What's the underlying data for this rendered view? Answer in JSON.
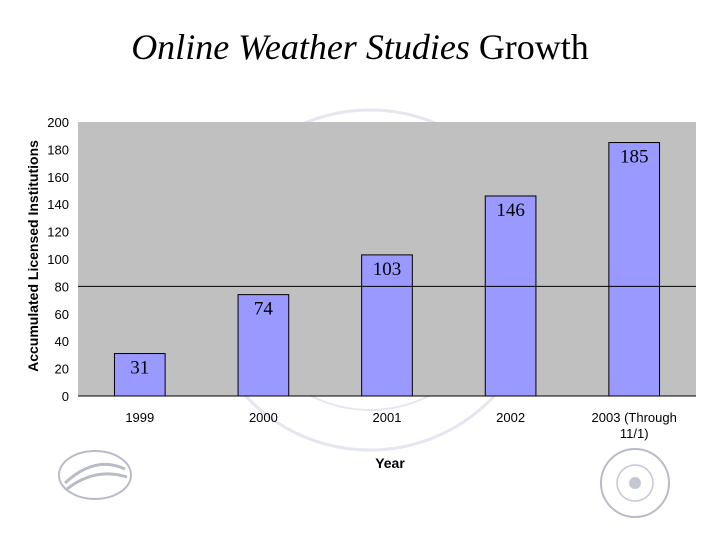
{
  "slide": {
    "title_italic": "Online Weather Studies",
    "title_rest": "Growth"
  },
  "chart_data": {
    "type": "bar",
    "title": "Online Weather Studies Growth",
    "xlabel": "Year",
    "ylabel": "Accumulated Licensed Institutions",
    "categories": [
      "1999",
      "2000",
      "2001",
      "2002",
      "2003 (Through 11/1)"
    ],
    "values": [
      31,
      74,
      103,
      146,
      185
    ],
    "data_labels": [
      "31",
      "74",
      "103",
      "146",
      "185"
    ],
    "ylim": [
      0,
      200
    ],
    "yticks": [
      0,
      20,
      40,
      60,
      80,
      100,
      120,
      140,
      160,
      180,
      200
    ],
    "reference_line": 80,
    "grid": false,
    "legend": "none",
    "colors": {
      "bar_fill": "#9999ff",
      "plot_background": "#c0c0c0",
      "axis": "#000000"
    }
  }
}
